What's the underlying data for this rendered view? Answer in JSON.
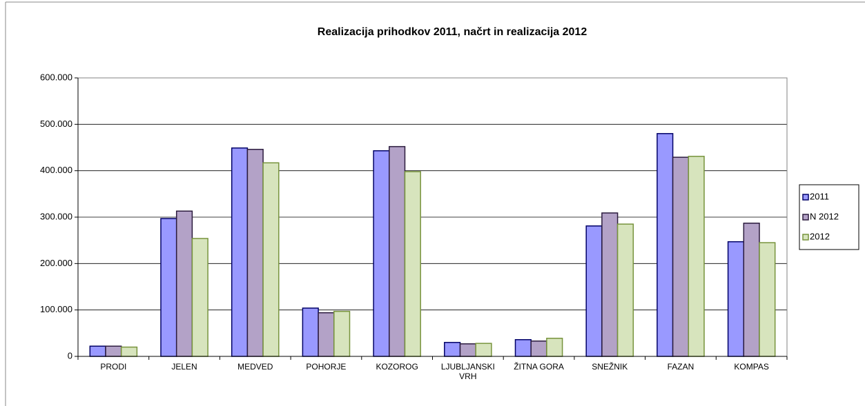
{
  "chart_data": {
    "type": "bar",
    "title": "Realizacija prihodkov 2011, načrt in realizacija 2012",
    "categories": [
      "PRODI",
      "JELEN",
      "MEDVED",
      "POHORJE",
      "KOZOROG",
      "LJUBLJANSKI VRH",
      "ŽITNA GORA",
      "SNEŽNIK",
      "FAZAN",
      "KOMPAS"
    ],
    "series": [
      {
        "name": "2011",
        "color": "#9999ff",
        "values": [
          22000,
          297000,
          449000,
          104000,
          443000,
          30000,
          36000,
          281000,
          480000,
          247000
        ]
      },
      {
        "name": "N 2012",
        "color": "#b3a2c7",
        "values": [
          22000,
          313000,
          446000,
          94000,
          452000,
          27000,
          33000,
          309000,
          429000,
          287000
        ]
      },
      {
        "name": "2012",
        "color": "#d7e4bd",
        "values": [
          20000,
          254000,
          417000,
          97000,
          398000,
          28000,
          39000,
          285000,
          431000,
          245000
        ]
      }
    ],
    "ylim": [
      0,
      600000
    ],
    "yticks": [
      0,
      {
        "value": 100000,
        "label": "100.000"
      },
      {
        "value": 200000,
        "label": "200.000"
      },
      {
        "value": 300000,
        "label": "300.000"
      },
      {
        "value": 400000,
        "label": "400.000"
      },
      {
        "value": 500000,
        "label": "500.000"
      },
      {
        "value": 600000,
        "label": "600.000"
      }
    ],
    "grid": true,
    "legend": "right"
  }
}
